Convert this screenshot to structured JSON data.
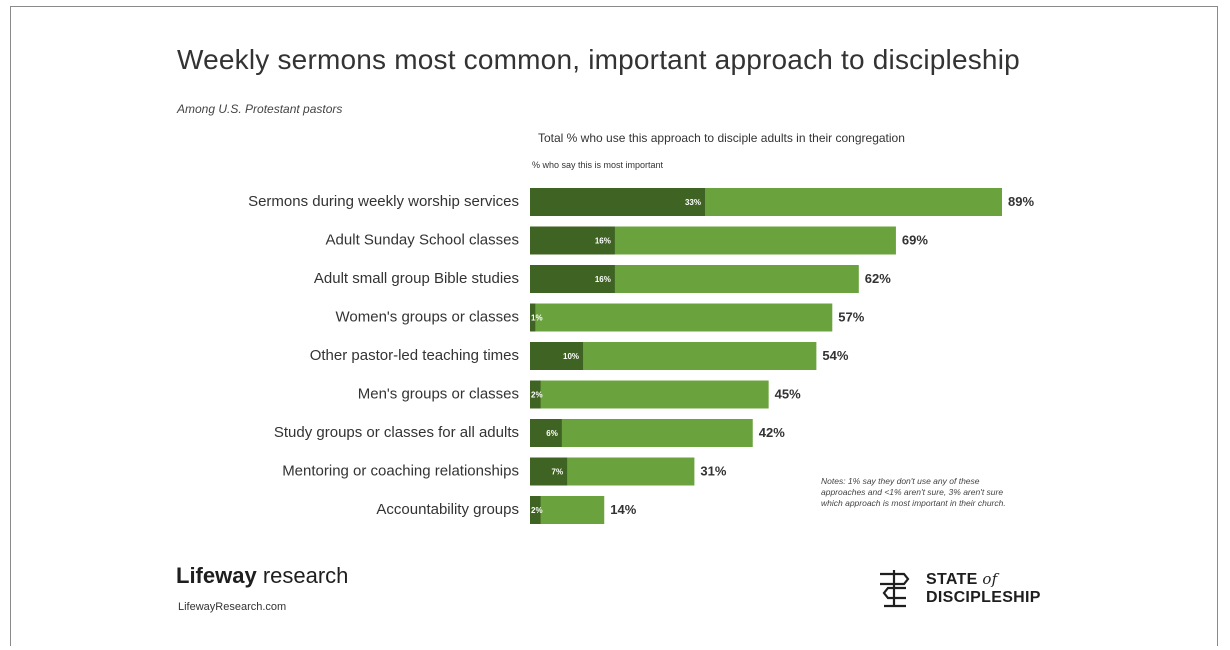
{
  "colors": {
    "total_bar": "#6aa33d",
    "most_important_bar": "#3f6323",
    "text": "#333333"
  },
  "brand": {
    "name_bold": "Lifeway",
    "name_rest": " research",
    "url": "LifewayResearch.com"
  },
  "logo": {
    "line1": "STATE ",
    "of": "of",
    "line2": "DISCIPLESHIP"
  },
  "notes": "Notes: 1% say they don't use any of these approaches and <1% aren't sure, 3% aren't sure which approach is most important in their church.",
  "chart_data": {
    "type": "bar",
    "orientation": "horizontal",
    "title": "Weekly sermons most common, important approach to discipleship",
    "subtitle": "Among U.S. Protestant pastors",
    "categories": [
      "Sermons during weekly worship services",
      "Adult Sunday School classes",
      "Adult small group Bible studies",
      "Women's groups or classes",
      "Other pastor-led teaching times",
      "Men's groups or classes",
      "Study groups or classes for all adults",
      "Mentoring or coaching relationships",
      "Accountability groups"
    ],
    "series": [
      {
        "name": "Total % who use this approach to disciple adults in their congregation",
        "values": [
          89,
          69,
          62,
          57,
          54,
          45,
          42,
          31,
          14
        ],
        "labels": [
          "89%",
          "69%",
          "62%",
          "57%",
          "54%",
          "45%",
          "42%",
          "31%",
          "14%"
        ]
      },
      {
        "name": "% who say this is most important",
        "values": [
          33,
          16,
          16,
          1,
          10,
          2,
          6,
          7,
          2
        ],
        "labels": [
          "33%",
          "16%",
          "16%",
          "1%",
          "10%",
          "2%",
          "6%",
          "7%",
          "2%"
        ]
      }
    ],
    "xlim": [
      0,
      100
    ],
    "grid": false,
    "legend_placement": "top"
  }
}
